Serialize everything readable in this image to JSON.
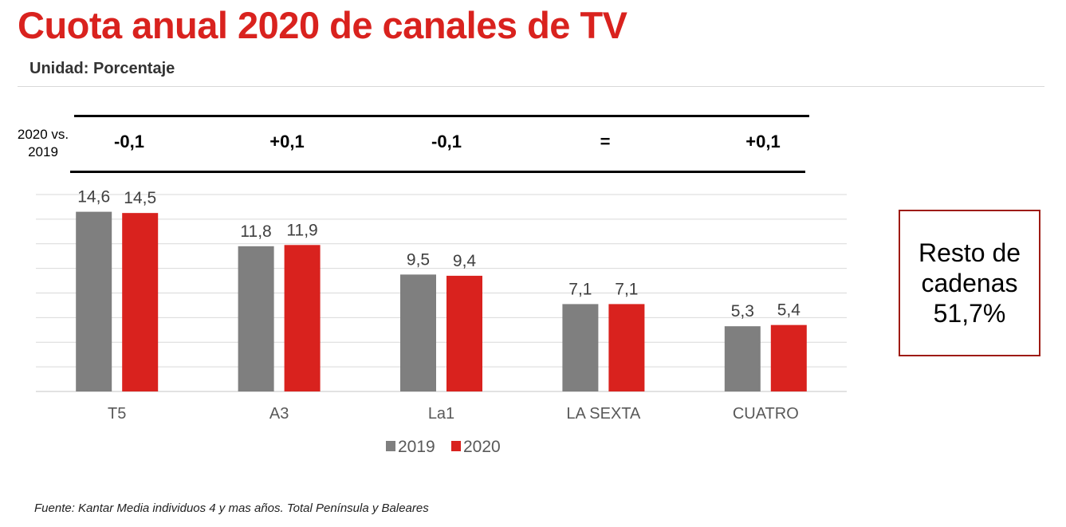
{
  "header": {
    "title": "Cuota anual 2020 de canales de TV",
    "subtitle": "Unidad: Porcentaje"
  },
  "comparison": {
    "label_line1": "2020 vs.",
    "label_line2": "2019",
    "values": [
      "-0,1",
      "+0,1",
      "-0,1",
      "=",
      "+0,1"
    ]
  },
  "resto": {
    "line1": "Resto de",
    "line2": "cadenas",
    "line3": "51,7%"
  },
  "footer": "Fuente: Kantar Media individuos 4 y mas años. Total Península y Baleares",
  "colors": {
    "s2019": "#7f7f7f",
    "s2020": "#d9221e",
    "grid": "#d9d9d9",
    "title": "#d9221e"
  },
  "chart_data": {
    "type": "bar",
    "title": "Cuota anual 2020 de canales de TV",
    "xlabel": "",
    "ylabel": "Porcentaje",
    "ylim": [
      0,
      16
    ],
    "grid": true,
    "legend_position": "bottom",
    "categories": [
      "T5",
      "A3",
      "La1",
      "LA SEXTA",
      "CUATRO"
    ],
    "series": [
      {
        "name": "2019",
        "values": [
          14.6,
          11.8,
          9.5,
          7.1,
          5.3
        ],
        "labels": [
          "14,6",
          "11,8",
          "9,5",
          "7,1",
          "5,3"
        ]
      },
      {
        "name": "2020",
        "values": [
          14.5,
          11.9,
          9.4,
          7.1,
          5.4
        ],
        "labels": [
          "14,5",
          "11,9",
          "9,4",
          "7,1",
          "5,4"
        ]
      }
    ]
  }
}
